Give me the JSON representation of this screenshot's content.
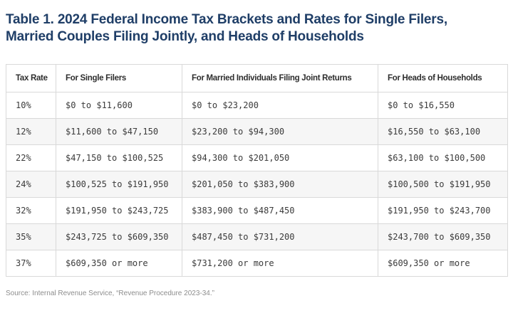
{
  "chart_data": {
    "type": "table",
    "title": "Table 1. 2024 Federal Income Tax Brackets and Rates for Single Filers, Married Couples Filing Jointly, and Heads of Households",
    "columns": [
      "Tax Rate",
      "For Single Filers",
      "For Married Individuals Filing Joint Returns",
      "For Heads of Households"
    ],
    "rows": [
      [
        "10%",
        "$0 to $11,600",
        "$0 to $23,200",
        "$0 to $16,550"
      ],
      [
        "12%",
        "$11,600 to $47,150",
        "$23,200 to $94,300",
        "$16,550 to $63,100"
      ],
      [
        "22%",
        "$47,150 to $100,525",
        "$94,300 to $201,050",
        "$63,100 to $100,500"
      ],
      [
        "24%",
        "$100,525 to $191,950",
        "$201,050 to $383,900",
        "$100,500 to $191,950"
      ],
      [
        "32%",
        "$191,950 to $243,725",
        "$383,900 to $487,450",
        "$191,950 to $243,700"
      ],
      [
        "35%",
        "$243,725 to $609,350",
        "$487,450 to $731,200",
        "$243,700 to $609,350"
      ],
      [
        "37%",
        "$609,350 or more",
        "$731,200 or more",
        "$609,350 or more"
      ]
    ],
    "source": "Source: Internal Revenue Service, “Revenue Procedure 2023-34.”",
    "layout_hints": {
      "grid": "on",
      "row_striping": "even body rows shaded"
    }
  },
  "colors": {
    "title_text": "#1f3e67",
    "header_text": "#2e2e2e",
    "cell_text": "#3b3b3b",
    "border": "#d9d9d9",
    "stripe": "#f6f6f6",
    "source_text": "#8d8d8d",
    "background": "#ffffff"
  }
}
